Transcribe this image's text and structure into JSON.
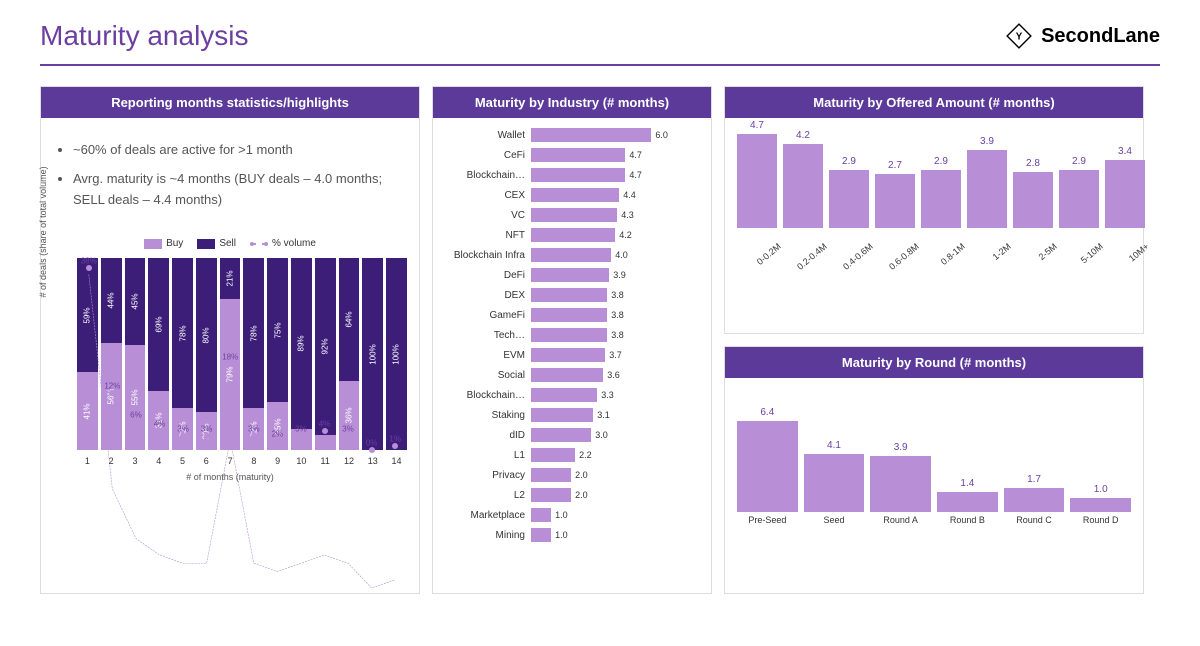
{
  "title": "Maturity analysis",
  "brand": "SecondLane",
  "colors": {
    "accent": "#6b3fa0",
    "header_bg": "#5c3a99",
    "bar_light": "#b88fd6",
    "bar_dark": "#3c1e78",
    "text": "#555555"
  },
  "left": {
    "header": "Reporting months statistics/highlights",
    "bullets": [
      "~60% of deals are active for >1 month",
      "Avrg. maturity is ~4 months (BUY deals – 4.0 months; SELL deals – 4.4 months)"
    ],
    "chart": {
      "type": "stacked-bar-with-line",
      "yaxis_label": "# of deals (share of total volume)",
      "xaxis_label": "# of months (maturity)",
      "legend": {
        "buy": "Buy",
        "sell": "Sell",
        "vol": "% volume"
      },
      "x": [
        1,
        2,
        3,
        4,
        5,
        6,
        7,
        8,
        9,
        10,
        11,
        12,
        13,
        14
      ],
      "buy_pct": [
        41,
        56,
        55,
        31,
        22,
        20,
        79,
        22,
        25,
        11,
        8,
        36,
        0,
        0
      ],
      "sell_pct": [
        59,
        44,
        45,
        69,
        78,
        80,
        21,
        78,
        75,
        89,
        92,
        64,
        100,
        100
      ],
      "vol_pct": [
        38,
        12,
        6,
        4,
        3,
        3,
        18,
        3,
        2,
        3,
        4,
        3,
        0,
        1
      ],
      "vol_ymax": 40,
      "buy_color": "#b88fd6",
      "sell_color": "#3c1e78",
      "line_color": "#b88fd6"
    }
  },
  "industry": {
    "header": "Maturity by Industry (# months)",
    "type": "hbar",
    "max": 6.0,
    "bar_color": "#b88fd6",
    "rows": [
      {
        "label": "Wallet",
        "val": 6.0
      },
      {
        "label": "CeFi",
        "val": 4.7
      },
      {
        "label": "Blockchain…",
        "val": 4.7
      },
      {
        "label": "CEX",
        "val": 4.4
      },
      {
        "label": "VC",
        "val": 4.3
      },
      {
        "label": "NFT",
        "val": 4.2
      },
      {
        "label": "Blockchain Infra",
        "val": 4.0
      },
      {
        "label": "DeFi",
        "val": 3.9
      },
      {
        "label": "DEX",
        "val": 3.8
      },
      {
        "label": "GameFi",
        "val": 3.8
      },
      {
        "label": "Tech…",
        "val": 3.8
      },
      {
        "label": "EVM",
        "val": 3.7
      },
      {
        "label": "Social",
        "val": 3.6
      },
      {
        "label": "Blockchain…",
        "val": 3.3
      },
      {
        "label": "Staking",
        "val": 3.1
      },
      {
        "label": "dID",
        "val": 3.0
      },
      {
        "label": "L1",
        "val": 2.2
      },
      {
        "label": "Privacy",
        "val": 2.0
      },
      {
        "label": "L2",
        "val": 2.0
      },
      {
        "label": "Marketplace",
        "val": 1.0
      },
      {
        "label": "Mining",
        "val": 1.0
      }
    ]
  },
  "amount": {
    "header": "Maturity by Offered Amount (# months)",
    "type": "vbar",
    "max": 5.0,
    "bar_color": "#b88fd6",
    "rows": [
      {
        "label": "0-0.2M",
        "val": 4.7
      },
      {
        "label": "0.2-0.4M",
        "val": 4.2
      },
      {
        "label": "0.4-0.6M",
        "val": 2.9
      },
      {
        "label": "0.6-0.8M",
        "val": 2.7
      },
      {
        "label": "0.8-1M",
        "val": 2.9
      },
      {
        "label": "1-2M",
        "val": 3.9
      },
      {
        "label": "2-5M",
        "val": 2.8
      },
      {
        "label": "5-10M",
        "val": 2.9
      },
      {
        "label": "10M+",
        "val": 3.4
      }
    ]
  },
  "round": {
    "header": "Maturity by Round (# months)",
    "type": "vbar",
    "max": 7.0,
    "bar_color": "#b88fd6",
    "rows": [
      {
        "label": "Pre-Seed",
        "val": 6.4
      },
      {
        "label": "Seed",
        "val": 4.1
      },
      {
        "label": "Round A",
        "val": 3.9
      },
      {
        "label": "Round B",
        "val": 1.4
      },
      {
        "label": "Round C",
        "val": 1.7
      },
      {
        "label": "Round D",
        "val": 1.0
      }
    ]
  }
}
